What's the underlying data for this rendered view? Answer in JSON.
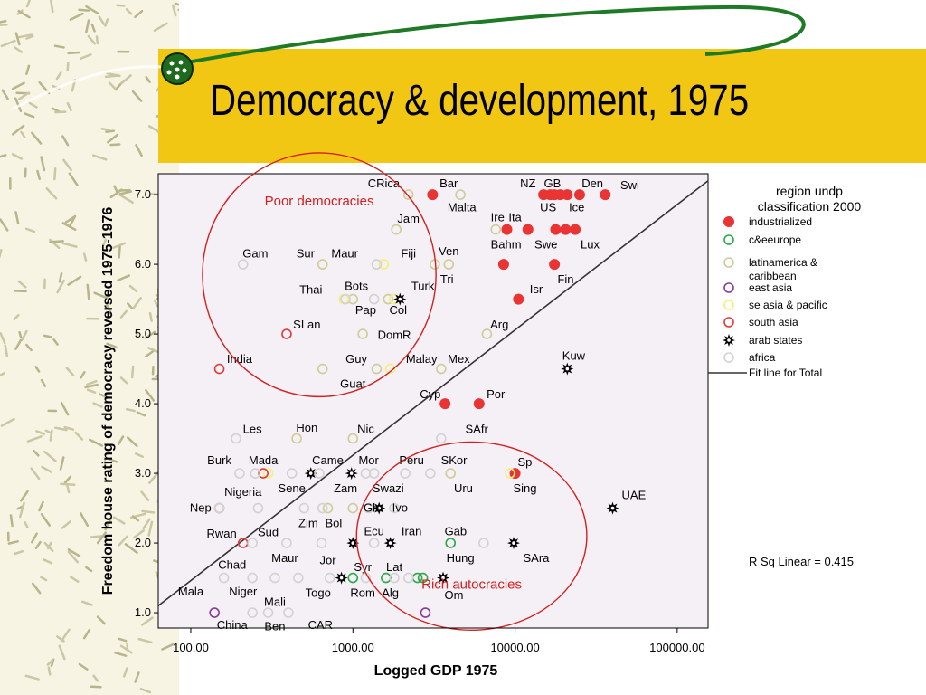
{
  "slide": {
    "title": "Democracy & development, 1975"
  },
  "colors": {
    "industrialized": "#ea3434",
    "c&eeurope": "#2aa84a",
    "latinamerica & caribbean": "#cfcc98",
    "east asia": "#8a3a96",
    "se asia & pacific": "#f3f07a",
    "south asia": "#e03c3c",
    "arab states": "#000000",
    "africa": "#d2d2d2",
    "fit": "#333333",
    "circle": "#d22020",
    "band": "#f2c713",
    "plot_bg": "#f5f0f5"
  },
  "chart_data": {
    "type": "scatter",
    "xlabel": "Logged GDP 1975",
    "ylabel": "Freedom house rating of democracy reversed 1975-1976",
    "x_scale": "log",
    "xlim": [
      63,
      155000
    ],
    "ylim": [
      0.78,
      7.3
    ],
    "xticks": [
      "100.00",
      "1000.00",
      "10000.00",
      "100000.00"
    ],
    "yticks": [
      "1.0",
      "2.0",
      "3.0",
      "4.0",
      "5.0",
      "6.0",
      "7.0"
    ],
    "legend": {
      "title_lines": [
        "region undp",
        "classification 2000"
      ],
      "items": [
        {
          "label": "industrialized",
          "group": "industrialized"
        },
        {
          "label": "c&eeurope",
          "group": "c&eeurope"
        },
        {
          "label": "latinamerica &",
          "label2": "caribbean",
          "group": "latinamerica & caribbean"
        },
        {
          "label": "east asia",
          "group": "east asia"
        },
        {
          "label": "se asia & pacific",
          "group": "se asia & pacific"
        },
        {
          "label": "south asia",
          "group": "south asia"
        },
        {
          "label": "arab states",
          "group": "arab states"
        },
        {
          "label": "africa",
          "group": "africa"
        }
      ],
      "fit_label": "Fit line for Total"
    },
    "fit_line": {
      "x": [
        63,
        155000
      ],
      "y": [
        1.1,
        7.2
      ]
    },
    "r_squared_label": "R Sq Linear = 0.415",
    "annotations": [
      {
        "text": "Poor democracies",
        "center": [
          620,
          5.85
        ],
        "rx_log": 0.72,
        "ry": 1.75
      },
      {
        "text": "Rich autocracies",
        "center": [
          5400,
          2.1
        ],
        "rx_log": 0.71,
        "ry": 1.35
      }
    ],
    "points": [
      {
        "x": 3100,
        "y": 7.0,
        "g": "industrialized"
      },
      {
        "x": 15000,
        "y": 7.0,
        "g": "industrialized"
      },
      {
        "x": 16500,
        "y": 7.0,
        "g": "industrialized"
      },
      {
        "x": 17500,
        "y": 7.0,
        "g": "industrialized"
      },
      {
        "x": 19000,
        "y": 7.0,
        "g": "industrialized"
      },
      {
        "x": 21000,
        "y": 7.0,
        "g": "industrialized"
      },
      {
        "x": 25000,
        "y": 7.0,
        "g": "industrialized"
      },
      {
        "x": 36000,
        "y": 7.0,
        "g": "industrialized"
      },
      {
        "x": 8900,
        "y": 6.5,
        "g": "industrialized"
      },
      {
        "x": 12000,
        "y": 6.5,
        "g": "industrialized"
      },
      {
        "x": 17800,
        "y": 6.5,
        "g": "industrialized"
      },
      {
        "x": 20500,
        "y": 6.5,
        "g": "industrialized"
      },
      {
        "x": 23500,
        "y": 6.5,
        "g": "industrialized"
      },
      {
        "x": 8500,
        "y": 6.0,
        "g": "industrialized"
      },
      {
        "x": 17500,
        "y": 6.0,
        "g": "industrialized"
      },
      {
        "x": 10500,
        "y": 5.5,
        "g": "industrialized"
      },
      {
        "x": 3700,
        "y": 4.0,
        "g": "industrialized"
      },
      {
        "x": 6000,
        "y": 4.0,
        "g": "industrialized"
      },
      {
        "x": 10000,
        "y": 3.0,
        "g": "industrialized"
      },
      {
        "x": 1000,
        "y": 1.5,
        "g": "c&eeurope"
      },
      {
        "x": 1600,
        "y": 1.5,
        "g": "c&eeurope"
      },
      {
        "x": 2500,
        "y": 1.5,
        "g": "c&eeurope"
      },
      {
        "x": 2700,
        "y": 1.5,
        "g": "c&eeurope"
      },
      {
        "x": 4000,
        "y": 2.0,
        "g": "c&eeurope"
      },
      {
        "x": 2200,
        "y": 7.0,
        "g": "latinamerica & caribbean"
      },
      {
        "x": 4600,
        "y": 7.0,
        "g": "latinamerica & caribbean"
      },
      {
        "x": 1850,
        "y": 6.5,
        "g": "latinamerica & caribbean"
      },
      {
        "x": 7600,
        "y": 6.5,
        "g": "latinamerica & caribbean"
      },
      {
        "x": 650,
        "y": 6.0,
        "g": "latinamerica & caribbean"
      },
      {
        "x": 3200,
        "y": 6.0,
        "g": "latinamerica & caribbean"
      },
      {
        "x": 3900,
        "y": 6.0,
        "g": "latinamerica & caribbean"
      },
      {
        "x": 1000,
        "y": 5.5,
        "g": "latinamerica & caribbean"
      },
      {
        "x": 1650,
        "y": 5.5,
        "g": "latinamerica & caribbean"
      },
      {
        "x": 1150,
        "y": 5.0,
        "g": "latinamerica & caribbean"
      },
      {
        "x": 6700,
        "y": 5.0,
        "g": "latinamerica & caribbean"
      },
      {
        "x": 650,
        "y": 4.5,
        "g": "latinamerica & caribbean"
      },
      {
        "x": 1400,
        "y": 4.5,
        "g": "latinamerica & caribbean"
      },
      {
        "x": 3500,
        "y": 4.5,
        "g": "latinamerica & caribbean"
      },
      {
        "x": 450,
        "y": 3.5,
        "g": "latinamerica & caribbean"
      },
      {
        "x": 1000,
        "y": 3.5,
        "g": "latinamerica & caribbean"
      },
      {
        "x": 700,
        "y": 2.5,
        "g": "latinamerica & caribbean"
      },
      {
        "x": 1000,
        "y": 2.5,
        "g": "latinamerica & caribbean"
      },
      {
        "x": 4000,
        "y": 3.0,
        "g": "latinamerica & caribbean"
      },
      {
        "x": 2800,
        "y": 1.0,
        "g": "east asia"
      },
      {
        "x": 140,
        "y": 1.0,
        "g": "east asia"
      },
      {
        "x": 1800,
        "y": 5.5,
        "g": "se asia & pacific"
      },
      {
        "x": 880,
        "y": 5.5,
        "g": "se asia & pacific"
      },
      {
        "x": 1550,
        "y": 6.0,
        "g": "se asia & pacific"
      },
      {
        "x": 1700,
        "y": 4.5,
        "g": "se asia & pacific"
      },
      {
        "x": 9300,
        "y": 3.0,
        "g": "se asia & pacific"
      },
      {
        "x": 300,
        "y": 3.0,
        "g": "se asia & pacific"
      },
      {
        "x": 150,
        "y": 4.5,
        "g": "south asia"
      },
      {
        "x": 390,
        "y": 5.0,
        "g": "south asia"
      },
      {
        "x": 280,
        "y": 3.0,
        "g": "south asia"
      },
      {
        "x": 150,
        "y": 2.5,
        "g": "south asia"
      },
      {
        "x": 210,
        "y": 2.0,
        "g": "south asia"
      },
      {
        "x": 1950,
        "y": 5.5,
        "g": "arab states"
      },
      {
        "x": 21000,
        "y": 4.5,
        "g": "arab states"
      },
      {
        "x": 550,
        "y": 3.0,
        "g": "arab states"
      },
      {
        "x": 980,
        "y": 3.0,
        "g": "arab states"
      },
      {
        "x": 1450,
        "y": 2.5,
        "g": "arab states"
      },
      {
        "x": 40000,
        "y": 2.5,
        "g": "arab states"
      },
      {
        "x": 1000,
        "y": 2.0,
        "g": "arab states"
      },
      {
        "x": 1700,
        "y": 2.0,
        "g": "arab states"
      },
      {
        "x": 9800,
        "y": 2.0,
        "g": "arab states"
      },
      {
        "x": 850,
        "y": 1.5,
        "g": "arab states"
      },
      {
        "x": 3600,
        "y": 1.5,
        "g": "arab states"
      },
      {
        "x": 210,
        "y": 6.0,
        "g": "africa"
      },
      {
        "x": 1400,
        "y": 6.0,
        "g": "africa"
      },
      {
        "x": 900,
        "y": 5.5,
        "g": "africa"
      },
      {
        "x": 1350,
        "y": 5.5,
        "g": "africa"
      },
      {
        "x": 190,
        "y": 3.5,
        "g": "africa"
      },
      {
        "x": 3500,
        "y": 3.5,
        "g": "africa"
      },
      {
        "x": 200,
        "y": 3.0,
        "g": "africa"
      },
      {
        "x": 250,
        "y": 3.0,
        "g": "africa"
      },
      {
        "x": 420,
        "y": 3.0,
        "g": "africa"
      },
      {
        "x": 620,
        "y": 3.0,
        "g": "africa"
      },
      {
        "x": 1200,
        "y": 3.0,
        "g": "africa"
      },
      {
        "x": 1350,
        "y": 3.0,
        "g": "africa"
      },
      {
        "x": 2100,
        "y": 3.0,
        "g": "africa"
      },
      {
        "x": 3000,
        "y": 3.0,
        "g": "africa"
      },
      {
        "x": 150,
        "y": 2.5,
        "g": "africa"
      },
      {
        "x": 260,
        "y": 2.5,
        "g": "africa"
      },
      {
        "x": 500,
        "y": 2.5,
        "g": "africa"
      },
      {
        "x": 650,
        "y": 2.5,
        "g": "africa"
      },
      {
        "x": 1250,
        "y": 2.5,
        "g": "africa"
      },
      {
        "x": 1800,
        "y": 2.5,
        "g": "africa"
      },
      {
        "x": 240,
        "y": 2.0,
        "g": "africa"
      },
      {
        "x": 390,
        "y": 2.0,
        "g": "africa"
      },
      {
        "x": 640,
        "y": 2.0,
        "g": "africa"
      },
      {
        "x": 1350,
        "y": 2.0,
        "g": "africa"
      },
      {
        "x": 6400,
        "y": 2.0,
        "g": "africa"
      },
      {
        "x": 160,
        "y": 1.5,
        "g": "africa"
      },
      {
        "x": 240,
        "y": 1.5,
        "g": "africa"
      },
      {
        "x": 330,
        "y": 1.5,
        "g": "africa"
      },
      {
        "x": 460,
        "y": 1.5,
        "g": "africa"
      },
      {
        "x": 720,
        "y": 1.5,
        "g": "africa"
      },
      {
        "x": 1200,
        "y": 1.5,
        "g": "africa"
      },
      {
        "x": 1800,
        "y": 1.5,
        "g": "africa"
      },
      {
        "x": 2200,
        "y": 1.5,
        "g": "africa"
      },
      {
        "x": 240,
        "y": 1.0,
        "g": "africa"
      },
      {
        "x": 300,
        "y": 1.0,
        "g": "africa"
      },
      {
        "x": 400,
        "y": 1.0,
        "g": "africa"
      }
    ],
    "labels": [
      {
        "text": "CRica",
        "x": 1550,
        "y": 7.16
      },
      {
        "text": "Bar",
        "x": 3900,
        "y": 7.16
      },
      {
        "text": "NZ",
        "x": 12000,
        "y": 7.16
      },
      {
        "text": "GB",
        "x": 17000,
        "y": 7.16
      },
      {
        "text": "Den",
        "x": 30000,
        "y": 7.16
      },
      {
        "text": "Swi",
        "x": 51000,
        "y": 7.13
      },
      {
        "text": "Malta",
        "x": 4700,
        "y": 6.81
      },
      {
        "text": "US",
        "x": 16000,
        "y": 6.81
      },
      {
        "text": "Ice",
        "x": 24000,
        "y": 6.81
      },
      {
        "text": "Jam",
        "x": 2200,
        "y": 6.65
      },
      {
        "text": "Ire",
        "x": 7800,
        "y": 6.67
      },
      {
        "text": "Ita",
        "x": 10000,
        "y": 6.67
      },
      {
        "text": "Bahm",
        "x": 8800,
        "y": 6.28
      },
      {
        "text": "Swe",
        "x": 15500,
        "y": 6.28
      },
      {
        "text": "Lux",
        "x": 29000,
        "y": 6.28
      },
      {
        "text": "Gam",
        "x": 250,
        "y": 6.15
      },
      {
        "text": "Sur",
        "x": 510,
        "y": 6.15
      },
      {
        "text": "Maur",
        "x": 890,
        "y": 6.15
      },
      {
        "text": "Fiji",
        "x": 2200,
        "y": 6.15
      },
      {
        "text": "Ven",
        "x": 3900,
        "y": 6.18
      },
      {
        "text": "Tri",
        "x": 3800,
        "y": 5.78
      },
      {
        "text": "Fin",
        "x": 20500,
        "y": 5.78
      },
      {
        "text": "Isr",
        "x": 13500,
        "y": 5.64
      },
      {
        "text": "Thai",
        "x": 550,
        "y": 5.63
      },
      {
        "text": "Bots",
        "x": 1050,
        "y": 5.68
      },
      {
        "text": "Turk",
        "x": 2700,
        "y": 5.68
      },
      {
        "text": "Pap",
        "x": 1200,
        "y": 5.34
      },
      {
        "text": "Col",
        "x": 1900,
        "y": 5.34
      },
      {
        "text": "SLan",
        "x": 520,
        "y": 5.13
      },
      {
        "text": "Arg",
        "x": 8000,
        "y": 5.13
      },
      {
        "text": "DomR",
        "x": 1800,
        "y": 4.98
      },
      {
        "text": "India",
        "x": 200,
        "y": 4.64
      },
      {
        "text": "Guy",
        "x": 1050,
        "y": 4.64
      },
      {
        "text": "Malay",
        "x": 2650,
        "y": 4.64
      },
      {
        "text": "Mex",
        "x": 4500,
        "y": 4.64
      },
      {
        "text": "Kuw",
        "x": 23000,
        "y": 4.68
      },
      {
        "text": "Guat",
        "x": 1000,
        "y": 4.28
      },
      {
        "text": "Cyp",
        "x": 3000,
        "y": 4.13
      },
      {
        "text": "Por",
        "x": 7600,
        "y": 4.13
      },
      {
        "text": "Les",
        "x": 240,
        "y": 3.63
      },
      {
        "text": "Hon",
        "x": 520,
        "y": 3.65
      },
      {
        "text": "Nic",
        "x": 1200,
        "y": 3.63
      },
      {
        "text": "SAfr",
        "x": 5800,
        "y": 3.63
      },
      {
        "text": "Burk",
        "x": 150,
        "y": 3.18
      },
      {
        "text": "Mada",
        "x": 280,
        "y": 3.18
      },
      {
        "text": "Came",
        "x": 700,
        "y": 3.18
      },
      {
        "text": "Mor",
        "x": 1250,
        "y": 3.18
      },
      {
        "text": "Peru",
        "x": 2300,
        "y": 3.18
      },
      {
        "text": "SKor",
        "x": 4200,
        "y": 3.18
      },
      {
        "text": "Sp",
        "x": 11500,
        "y": 3.16
      },
      {
        "text": "Sene",
        "x": 420,
        "y": 2.78
      },
      {
        "text": "Zam",
        "x": 900,
        "y": 2.78
      },
      {
        "text": "Swazi",
        "x": 1650,
        "y": 2.78
      },
      {
        "text": "Uru",
        "x": 4800,
        "y": 2.78
      },
      {
        "text": "Sing",
        "x": 11500,
        "y": 2.78
      },
      {
        "text": "Nigeria",
        "x": 210,
        "y": 2.73
      },
      {
        "text": "UAE",
        "x": 54000,
        "y": 2.68
      },
      {
        "text": "Nep",
        "x": 115,
        "y": 2.5
      },
      {
        "text": "Gh",
        "x": 1300,
        "y": 2.5
      },
      {
        "text": "Ivo",
        "x": 1950,
        "y": 2.5
      },
      {
        "text": "Zim",
        "x": 530,
        "y": 2.28
      },
      {
        "text": "Bol",
        "x": 760,
        "y": 2.28
      },
      {
        "text": "Rwan",
        "x": 155,
        "y": 2.13
      },
      {
        "text": "Sud",
        "x": 300,
        "y": 2.15
      },
      {
        "text": "Ecu",
        "x": 1350,
        "y": 2.16
      },
      {
        "text": "Iran",
        "x": 2300,
        "y": 2.16
      },
      {
        "text": "Gab",
        "x": 4300,
        "y": 2.16
      },
      {
        "text": "Chad",
        "x": 180,
        "y": 1.68
      },
      {
        "text": "Maur",
        "x": 380,
        "y": 1.78
      },
      {
        "text": "Jor",
        "x": 700,
        "y": 1.75
      },
      {
        "text": "Hung",
        "x": 4600,
        "y": 1.78
      },
      {
        "text": "SAra",
        "x": 13500,
        "y": 1.78
      },
      {
        "text": "Syr",
        "x": 1150,
        "y": 1.65
      },
      {
        "text": "Lat",
        "x": 1800,
        "y": 1.65
      },
      {
        "text": "Mala",
        "x": 100,
        "y": 1.3
      },
      {
        "text": "Niger",
        "x": 210,
        "y": 1.3
      },
      {
        "text": "Togo",
        "x": 610,
        "y": 1.28
      },
      {
        "text": "Rom",
        "x": 1150,
        "y": 1.28
      },
      {
        "text": "Alg",
        "x": 1700,
        "y": 1.28
      },
      {
        "text": "Om",
        "x": 4200,
        "y": 1.25
      },
      {
        "text": "Mali",
        "x": 330,
        "y": 1.15
      },
      {
        "text": "China",
        "x": 180,
        "y": 0.82
      },
      {
        "text": "Ben",
        "x": 330,
        "y": 0.8
      },
      {
        "text": "CAR",
        "x": 630,
        "y": 0.82
      }
    ]
  }
}
